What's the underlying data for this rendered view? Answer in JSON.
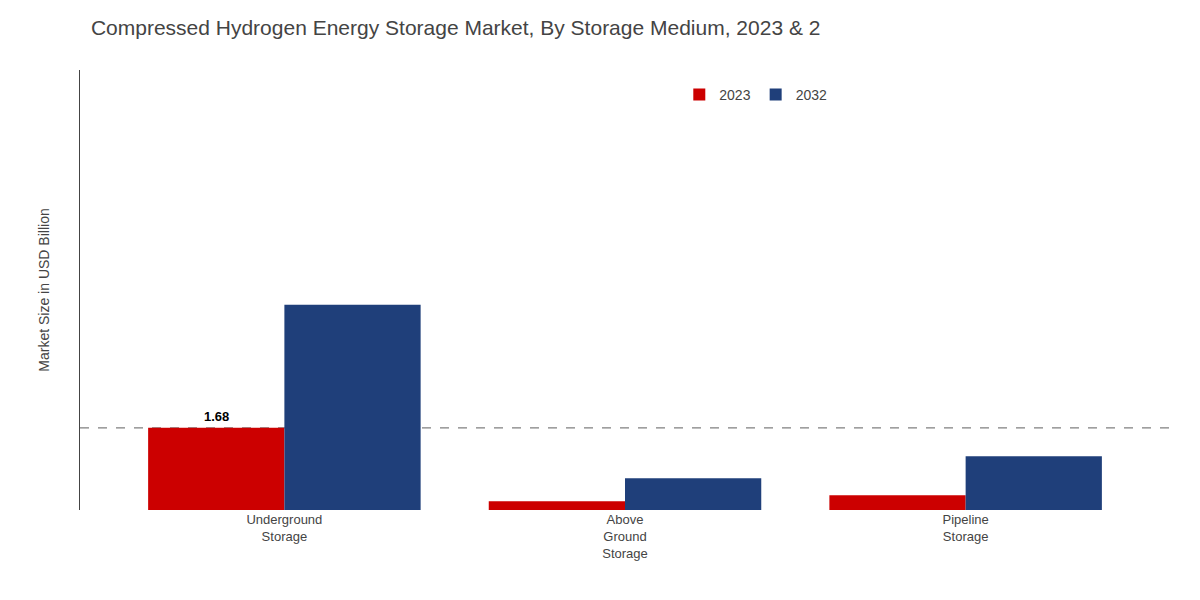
{
  "chart_data": {
    "type": "bar",
    "title": "Compressed Hydrogen Energy Storage Market, By Storage Medium, 2023 & 2",
    "ylabel": "Market Size in USD Billion",
    "categories": [
      "Underground\nStorage",
      "Above\nGround\nStorage",
      "Pipeline\nStorage"
    ],
    "series": [
      {
        "name": "2023",
        "color": "#cc0000",
        "values": [
          1.68,
          0.18,
          0.3
        ]
      },
      {
        "name": "2032",
        "color": "#1f3f7a",
        "values": [
          4.2,
          0.65,
          1.1
        ]
      }
    ],
    "ylim": [
      0,
      9.0
    ],
    "yticks": [],
    "tick_labels": "x",
    "grid": false,
    "legend": "top",
    "annotations": [
      {
        "text": "1.68",
        "category": "Underground\nStorage",
        "series": "2023"
      }
    ],
    "hlines": [
      {
        "y": 1.68,
        "line_style": "dashed",
        "color": "gray"
      }
    ]
  }
}
